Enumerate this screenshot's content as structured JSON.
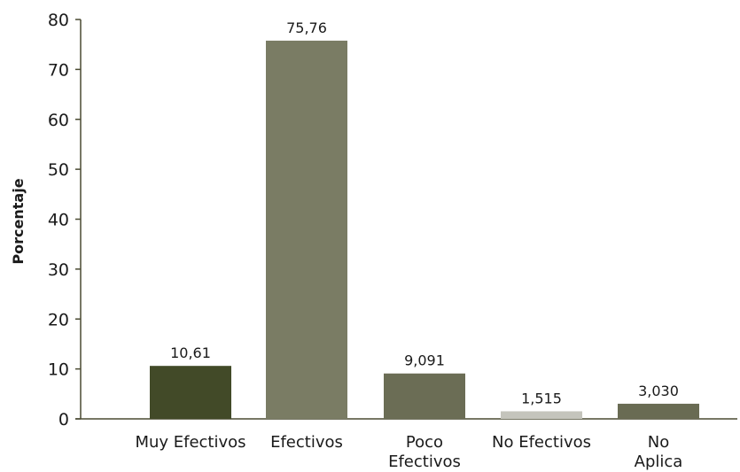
{
  "chart_data": {
    "type": "bar",
    "title": "",
    "xlabel": "",
    "ylabel": "Porcentaje",
    "ylim": [
      0,
      80
    ],
    "yticks": [
      0,
      10,
      20,
      30,
      40,
      50,
      60,
      70,
      80
    ],
    "ytick_labels": [
      "0",
      "10",
      "20",
      "30",
      "40",
      "50",
      "60",
      "70",
      "80"
    ],
    "grid": false,
    "legend": "none",
    "categories": [
      [
        "Muy Efectivos"
      ],
      [
        "Efectivos"
      ],
      [
        "Poco",
        "Efectivos"
      ],
      [
        "No Efectivos"
      ],
      [
        "No",
        "Aplica"
      ]
    ],
    "values": [
      10.61,
      75.76,
      9.091,
      1.515,
      3.03
    ],
    "value_labels": [
      "10,61",
      "75,76",
      "9,091",
      "1,515",
      "3,030"
    ],
    "colors": [
      "#424a28",
      "#7a7c64",
      "#6b6d55",
      "#c4c4bc",
      "#696b53"
    ],
    "axis_color": "#4a4a32"
  }
}
